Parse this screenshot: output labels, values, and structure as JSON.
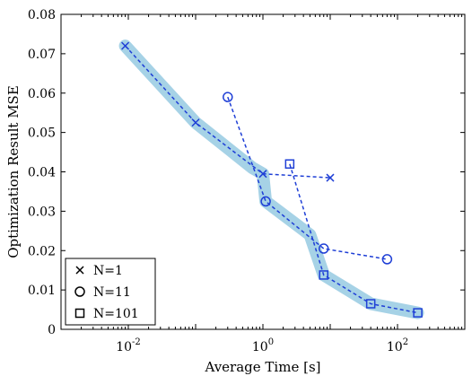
{
  "chart_data": {
    "type": "line",
    "title": "",
    "xlabel": "Average Time [s]",
    "ylabel": "Optimization Result MSE",
    "xscale": "log",
    "xlim": [
      0.001,
      1000
    ],
    "ylim": [
      0,
      0.08
    ],
    "x_tick_labels": [
      {
        "value": 0.01,
        "base": "10",
        "exp": "-2"
      },
      {
        "value": 1,
        "base": "10",
        "exp": "0"
      },
      {
        "value": 100,
        "base": "10",
        "exp": "2"
      }
    ],
    "y_ticks": [
      0,
      0.01,
      0.02,
      0.03,
      0.04,
      0.05,
      0.06,
      0.07,
      0.08
    ],
    "y_tick_labels": [
      "0",
      "0.01",
      "0.02",
      "0.03",
      "0.04",
      "0.05",
      "0.06",
      "0.07",
      "0.08"
    ],
    "legend_position": "bottom-left",
    "line_color": "#1f3fd6",
    "highlight_color": "#a6d2e6",
    "series": [
      {
        "name": "N=1",
        "marker": "x",
        "x": [
          0.009,
          0.1,
          1.0,
          10.0
        ],
        "y": [
          0.072,
          0.0525,
          0.0395,
          0.0385
        ]
      },
      {
        "name": "N=11",
        "marker": "o",
        "x": [
          0.3,
          1.1,
          8.0,
          70.0
        ],
        "y": [
          0.059,
          0.0325,
          0.0205,
          0.0178
        ]
      },
      {
        "name": "N=101",
        "marker": "s",
        "x": [
          2.5,
          8.0,
          40.0,
          200.0
        ],
        "y": [
          0.042,
          0.0138,
          0.0065,
          0.0042
        ]
      }
    ],
    "envelope": {
      "x": [
        0.009,
        0.1,
        0.7,
        1.0,
        1.1,
        5.0,
        8.0,
        40.0,
        200.0
      ],
      "y": [
        0.072,
        0.0525,
        0.041,
        0.0395,
        0.0325,
        0.024,
        0.0138,
        0.0065,
        0.0042
      ]
    }
  }
}
